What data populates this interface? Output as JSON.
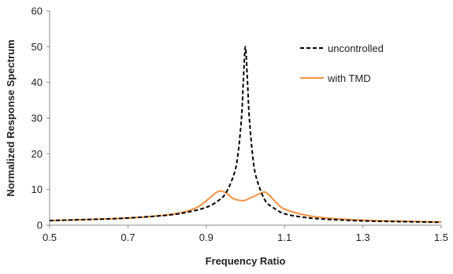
{
  "chart_data": {
    "type": "line",
    "xlabel": "Frequency Ratio",
    "ylabel": "Normalized Response Spectrum",
    "xlim": [
      0.5,
      1.5
    ],
    "ylim": [
      0,
      60
    ],
    "xticks": [
      0.5,
      0.7,
      0.9,
      1.1,
      1.3,
      1.5
    ],
    "xtick_labels": [
      "0.5",
      "0.7",
      "0.9",
      "1.1",
      "1.3",
      "1.5"
    ],
    "yticks": [
      0,
      10,
      20,
      30,
      40,
      50,
      60
    ],
    "ytick_labels": [
      "0",
      "10",
      "20",
      "30",
      "40",
      "50",
      "60"
    ],
    "grid": false,
    "legend_position": "top-right",
    "series": [
      {
        "name": "uncontrolled",
        "color": "#000000",
        "style": "dashed",
        "x": [
          0.5,
          0.6,
          0.7,
          0.8,
          0.85,
          0.9,
          0.93,
          0.95,
          0.97,
          0.98,
          0.99,
          0.995,
          1.0,
          1.005,
          1.01,
          1.02,
          1.03,
          1.05,
          1.07,
          1.1,
          1.15,
          1.2,
          1.3,
          1.4,
          1.5
        ],
        "values": [
          1.3,
          1.6,
          2.0,
          2.8,
          3.6,
          5.0,
          6.8,
          9.0,
          14.0,
          19.0,
          30.0,
          41.0,
          50.0,
          41.0,
          30.0,
          18.0,
          12.5,
          7.0,
          5.0,
          3.2,
          2.2,
          1.7,
          1.2,
          1.0,
          0.8
        ]
      },
      {
        "name": "with TMD",
        "color": "#F0923F",
        "style": "solid",
        "x": [
          0.5,
          0.6,
          0.7,
          0.8,
          0.85,
          0.88,
          0.9,
          0.92,
          0.935,
          0.95,
          0.97,
          0.99,
          1.0,
          1.02,
          1.04,
          1.05,
          1.06,
          1.08,
          1.1,
          1.15,
          1.2,
          1.3,
          1.4,
          1.5
        ],
        "values": [
          1.3,
          1.6,
          2.0,
          2.9,
          3.9,
          5.2,
          6.8,
          8.7,
          9.6,
          9.1,
          7.4,
          6.9,
          7.0,
          8.0,
          9.0,
          9.3,
          8.5,
          6.2,
          4.5,
          2.9,
          2.1,
          1.4,
          1.1,
          0.9
        ]
      }
    ]
  }
}
